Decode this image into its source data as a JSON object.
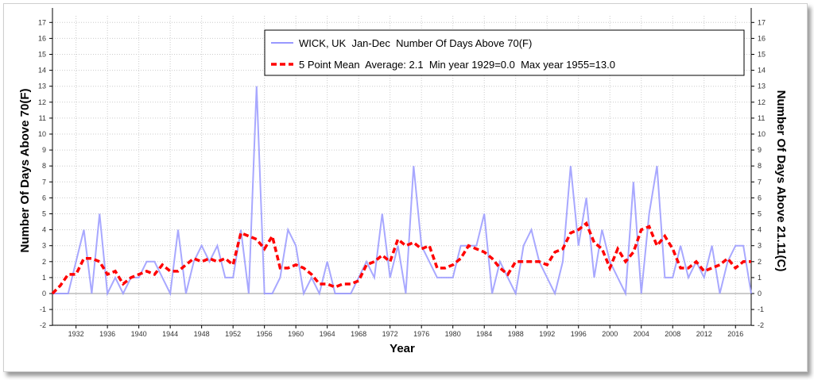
{
  "chart_data": {
    "type": "line",
    "title": "",
    "xlabel": "Year",
    "ylabel": "Number Of Days Above 70(F)",
    "ylabel_right": "Number Of Days Above 21.11(C)",
    "xlim": [
      1929,
      2018
    ],
    "ylim": [
      -2,
      17
    ],
    "yticks": [
      -2,
      -1,
      0,
      1,
      2,
      3,
      4,
      5,
      6,
      7,
      8,
      9,
      10,
      11,
      12,
      13,
      14,
      15,
      16,
      17
    ],
    "xticks": [
      1932,
      1936,
      1940,
      1944,
      1948,
      1952,
      1956,
      1960,
      1964,
      1968,
      1972,
      1976,
      1980,
      1984,
      1988,
      1992,
      1996,
      2000,
      2004,
      2008,
      2012,
      2016
    ],
    "grid": true,
    "legend_placement": "top-right",
    "x": [
      1929,
      1930,
      1931,
      1932,
      1933,
      1934,
      1935,
      1936,
      1937,
      1938,
      1939,
      1940,
      1941,
      1942,
      1943,
      1944,
      1945,
      1946,
      1947,
      1948,
      1949,
      1950,
      1951,
      1952,
      1953,
      1954,
      1955,
      1956,
      1957,
      1958,
      1959,
      1960,
      1961,
      1962,
      1963,
      1964,
      1965,
      1966,
      1967,
      1968,
      1969,
      1970,
      1971,
      1972,
      1973,
      1974,
      1975,
      1976,
      1977,
      1978,
      1979,
      1980,
      1981,
      1982,
      1983,
      1984,
      1985,
      1986,
      1987,
      1988,
      1989,
      1990,
      1991,
      1992,
      1993,
      1994,
      1995,
      1996,
      1997,
      1998,
      1999,
      2000,
      2001,
      2002,
      2003,
      2004,
      2005,
      2006,
      2007,
      2008,
      2009,
      2010,
      2011,
      2012,
      2013,
      2014,
      2015,
      2016,
      2017,
      2018
    ],
    "series": [
      {
        "name": "WICK, UK  Jan-Dec  Number Of Days Above 70(F)",
        "color": "#9999ff",
        "values": [
          0,
          0,
          0,
          2,
          4,
          0,
          5,
          0,
          1,
          0,
          1,
          1,
          2,
          2,
          1,
          0,
          4,
          0,
          2,
          3,
          2,
          3,
          1,
          1,
          4,
          0,
          13,
          0,
          0,
          1,
          4,
          3,
          0,
          1,
          0,
          2,
          0,
          0,
          0,
          1,
          2,
          1,
          5,
          1,
          3,
          0,
          8,
          3,
          2,
          1,
          1,
          1,
          3,
          3,
          3,
          5,
          0,
          2,
          1,
          0,
          3,
          4,
          2,
          1,
          0,
          2,
          8,
          3,
          6,
          1,
          4,
          2,
          1,
          0,
          7,
          0,
          5,
          8,
          1,
          1,
          3,
          1,
          2,
          1,
          3,
          0,
          2,
          3,
          3,
          0
        ]
      },
      {
        "name": "5 Point Mean  Average: 2.1  Min year 1929=0.0  Max year 1955=13.0",
        "color": "#ff0000",
        "window": 5
      }
    ]
  }
}
